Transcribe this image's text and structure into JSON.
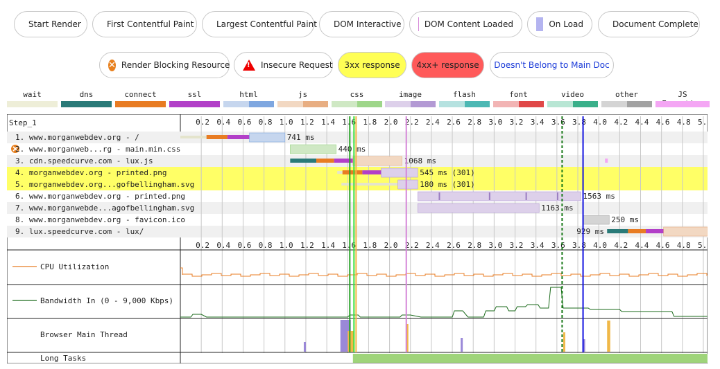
{
  "legend_events": [
    {
      "label": "Start Render",
      "marker": "line",
      "color": "#28a228"
    },
    {
      "label": "First Contentful Paint",
      "marker": "line",
      "color": "#3ce03c"
    },
    {
      "label": "Largest Contentful Paint",
      "marker": "dashed",
      "color": "#1a7a1a"
    },
    {
      "label": "DOM Interactive",
      "marker": "line",
      "color": "#f0b848"
    },
    {
      "label": "DOM Content Loaded",
      "marker": "block",
      "color": "#d585d8"
    },
    {
      "label": "On Load",
      "marker": "block",
      "color": "#b4b4f0"
    },
    {
      "label": "Document Complete",
      "marker": "line",
      "color": "#1010e0"
    }
  ],
  "legend_flags": [
    {
      "label": "Render Blocking Resource",
      "icon": "render-blocking-icon"
    },
    {
      "label": "Insecure Request",
      "icon": "warning-icon"
    },
    {
      "label": "3xx response",
      "bg": "#ffff55"
    },
    {
      "label": "4xx+ response",
      "bg": "#ff5a5a"
    },
    {
      "label": "Doesn't Belong to Main Doc",
      "color": "#1a3ad8"
    }
  ],
  "request_types": [
    {
      "label": "wait",
      "colors": [
        "#eeeed8",
        "#eeeed8"
      ]
    },
    {
      "label": "dns",
      "colors": [
        "#2a7a78",
        "#2a7a78"
      ]
    },
    {
      "label": "connect",
      "colors": [
        "#e87c23",
        "#e87c23"
      ]
    },
    {
      "label": "ssl",
      "colors": [
        "#b23fc8",
        "#b23fc8"
      ]
    },
    {
      "label": "html",
      "colors": [
        "#c6d6ee",
        "#7fa7e0"
      ]
    },
    {
      "label": "js",
      "colors": [
        "#f2d8c2",
        "#e8ae82"
      ]
    },
    {
      "label": "css",
      "colors": [
        "#cfe8c4",
        "#9ed68a"
      ]
    },
    {
      "label": "image",
      "colors": [
        "#ddd0ea",
        "#b39ad4"
      ]
    },
    {
      "label": "flash",
      "colors": [
        "#b6e2e0",
        "#4cb8b4"
      ]
    },
    {
      "label": "font",
      "colors": [
        "#f2b4b4",
        "#e04848"
      ]
    },
    {
      "label": "video",
      "colors": [
        "#b8e6d4",
        "#3ab08a"
      ]
    },
    {
      "label": "other",
      "colors": [
        "#d4d4d4",
        "#a2a2a2"
      ]
    },
    {
      "label": "JS Execution",
      "colors": [
        "#f4a6f4",
        "#f4a6f4"
      ]
    }
  ],
  "waterfall": {
    "step_label": "Step_1",
    "ticks": [
      "0.2",
      "0.4",
      "0.6",
      "0.8",
      "1.0",
      "1.2",
      "1.4",
      "1.6",
      "1.8",
      "2.0",
      "2.2",
      "2.4",
      "2.6",
      "2.8",
      "3.0",
      "3.2",
      "3.4",
      "3.6",
      "3.8",
      "4.0",
      "4.2",
      "4.4",
      "4.6",
      "4.8",
      "5."
    ],
    "max_seconds": 5.04,
    "events": {
      "start_render": 1.62,
      "first_contentful_paint": 1.66,
      "largest_contentful_paint": 3.65,
      "dom_interactive": 1.68,
      "dom_content_loaded": 2.16,
      "document_complete": 3.85
    },
    "requests": [
      {
        "label": "1. www.morganwebdev.org - /",
        "highlight": false,
        "blocking": false,
        "start": 0.0,
        "wait_end": 0.25,
        "dns_end": 0.25,
        "connect_end": 0.45,
        "ssl_end": 0.66,
        "end": 1.0,
        "type": "html",
        "timing": "741 ms"
      },
      {
        "label": "2. www.morganweb...rg - main.min.css",
        "highlight": false,
        "blocking": true,
        "start": 1.05,
        "wait_end": 1.05,
        "dns_end": 1.05,
        "connect_end": 1.05,
        "ssl_end": 1.05,
        "end": 1.49,
        "type": "css",
        "timing": "440 ms"
      },
      {
        "label": "3. cdn.speedcurve.com - lux.js",
        "highlight": false,
        "blocking": false,
        "start": 1.05,
        "wait_end": 1.05,
        "dns_end": 1.3,
        "connect_end": 1.47,
        "ssl_end": 1.65,
        "end": 2.12,
        "type": "js",
        "timing": "1068 ms"
      },
      {
        "label": "4. morganwebdev.org - printed.png",
        "highlight": true,
        "blocking": false,
        "start": 1.5,
        "wait_end": 1.55,
        "dns_end": 1.55,
        "connect_end": 1.74,
        "ssl_end": 1.92,
        "end": 2.27,
        "type": "image",
        "timing": "545 ms (301)"
      },
      {
        "label": "5. morganwebdev.org...gofbellingham.svg",
        "highlight": true,
        "blocking": false,
        "start": 1.54,
        "wait_end": 2.08,
        "dns_end": 2.08,
        "connect_end": 2.08,
        "ssl_end": 2.08,
        "end": 2.27,
        "type": "image",
        "timing": "180 ms (301)"
      },
      {
        "label": "6. www.morganwebdev.org - printed.png",
        "highlight": false,
        "blocking": false,
        "start": 2.27,
        "wait_end": 2.27,
        "dns_end": 2.27,
        "connect_end": 2.27,
        "ssl_end": 2.27,
        "end": 3.83,
        "type": "image",
        "timing": "1563 ms"
      },
      {
        "label": "7. www.morganwebde...agofbellingham.svg",
        "highlight": false,
        "blocking": false,
        "start": 2.27,
        "wait_end": 2.27,
        "dns_end": 2.27,
        "connect_end": 2.27,
        "ssl_end": 2.27,
        "end": 3.43,
        "type": "image",
        "timing": "1163 ms"
      },
      {
        "label": "8. www.morganwebdev.org - favicon.ico",
        "highlight": false,
        "blocking": false,
        "start": 3.85,
        "wait_end": 3.85,
        "dns_end": 3.85,
        "connect_end": 3.85,
        "ssl_end": 3.85,
        "end": 4.1,
        "type": "other",
        "timing": "250 ms"
      },
      {
        "label": "9. lux.speedcurve.com - lux/",
        "highlight": false,
        "blocking": false,
        "start": 4.08,
        "wait_end": 4.08,
        "dns_end": 4.28,
        "connect_end": 4.45,
        "ssl_end": 4.62,
        "end": 5.04,
        "type": "js",
        "timing": "929 ms"
      }
    ],
    "cpu_label": "CPU Utilization",
    "bandwidth_label": "Bandwidth In (0 - 9,000 Kbps)",
    "main_thread_label": "Browser Main Thread",
    "long_tasks_label": "Long Tasks"
  }
}
